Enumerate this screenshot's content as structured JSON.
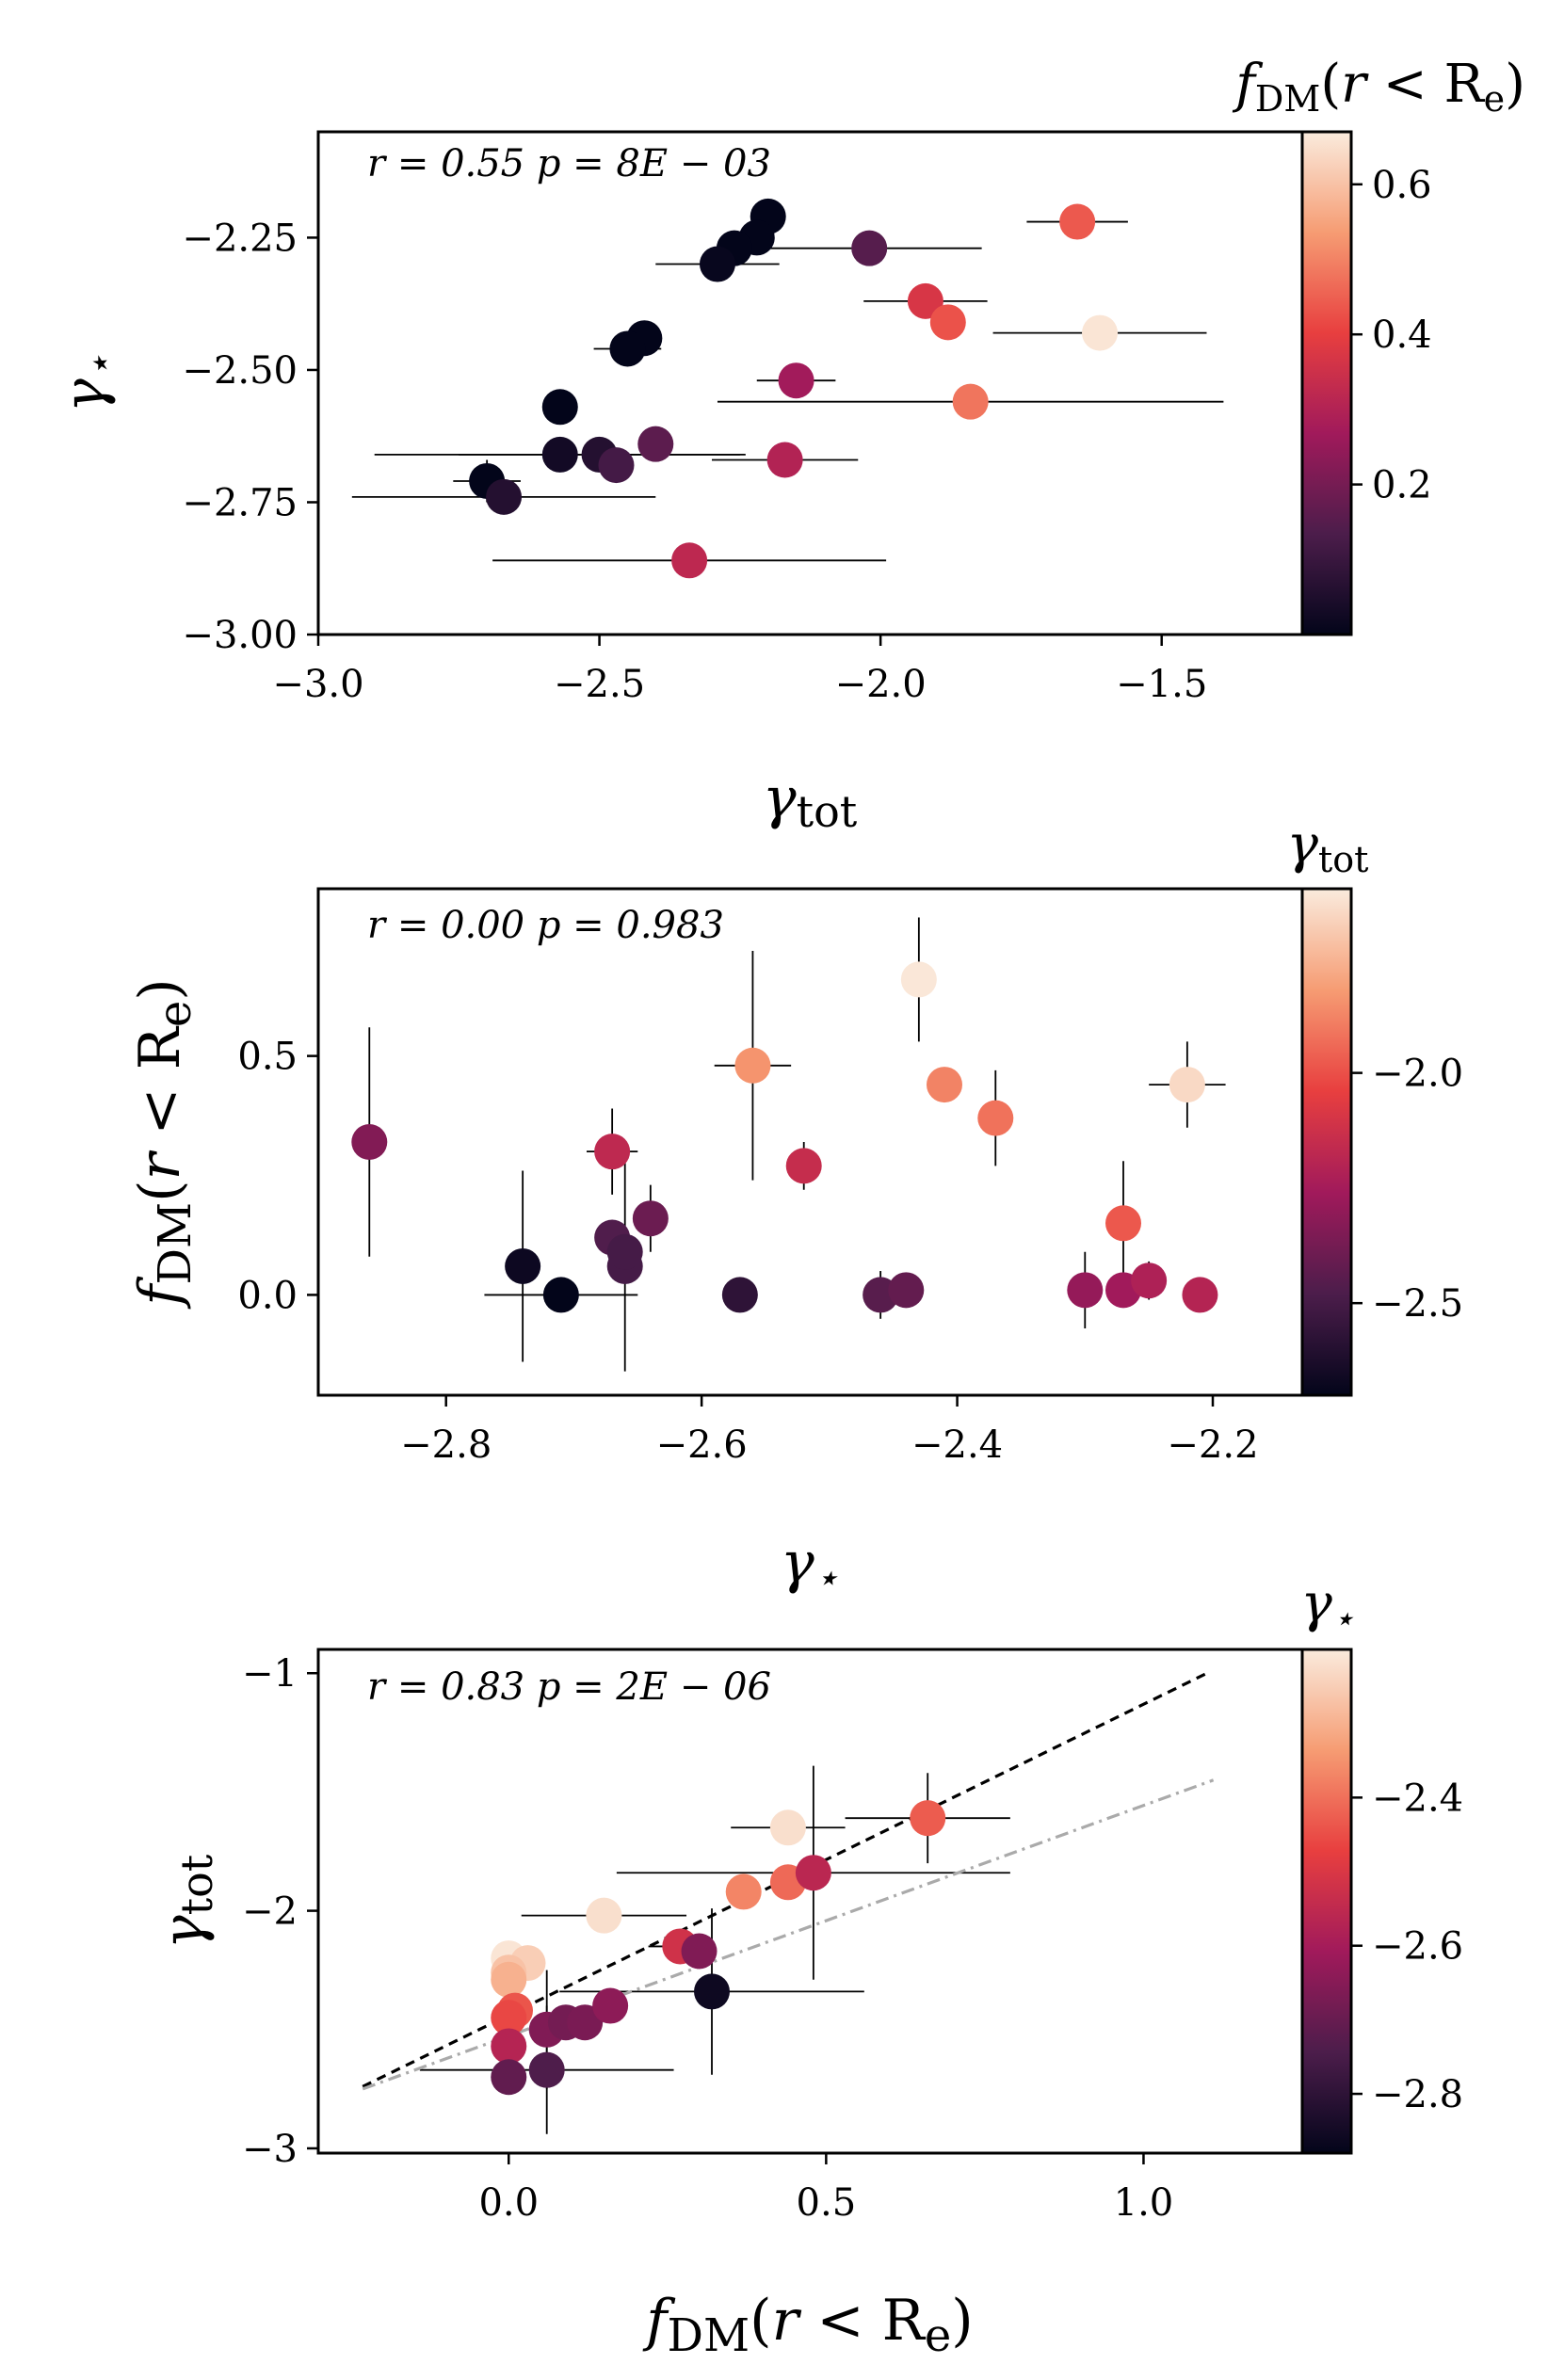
{
  "figure": {
    "panels": 3
  },
  "colormap": [
    "#03051a",
    "#4c1d4b",
    "#a11a5b",
    "#e83f3f",
    "#f69c73",
    "#faebdd"
  ],
  "chart_data": [
    {
      "type": "scatter",
      "id": "p1",
      "title": "",
      "xlabel": "γtot",
      "ylabel": "γ⋆",
      "xlim": [
        -3.0,
        -1.25
      ],
      "ylim": [
        -3.0,
        -2.05
      ],
      "xticks": [
        -3.0,
        -2.5,
        -2.0,
        -1.5
      ],
      "xtick_labels": [
        "−3.0",
        "−2.5",
        "−2.0",
        "−1.5"
      ],
      "yticks": [
        -3.0,
        -2.75,
        -2.5,
        -2.25
      ],
      "ytick_labels": [
        "−3.00",
        "−2.75",
        "−2.50",
        "−2.25"
      ],
      "annotation": "r = 0.55  p = 8E − 03",
      "colorbar": {
        "label": "fDM(r < Re)",
        "range": [
          0.0,
          0.67
        ],
        "ticks": [
          0.2,
          0.4,
          0.6
        ],
        "tick_labels": [
          "0.2",
          "0.4",
          "0.6"
        ]
      },
      "points": [
        {
          "x": -2.2,
          "y": -2.21,
          "c": 0.0,
          "xerr": 0.0,
          "yerr": 0.0
        },
        {
          "x": -2.22,
          "y": -2.25,
          "c": 0.0,
          "xerr": 0.0,
          "yerr": 0.0
        },
        {
          "x": -2.26,
          "y": -2.27,
          "c": 0.0,
          "xerr": 0.0,
          "yerr": 0.0
        },
        {
          "x": -2.29,
          "y": -2.3,
          "c": 0.01,
          "xerr": 0.11,
          "yerr": 0.0
        },
        {
          "x": -2.02,
          "y": -2.27,
          "c": 0.15,
          "xerr": 0.2,
          "yerr": 0.0
        },
        {
          "x": -1.65,
          "y": -2.22,
          "c": 0.44,
          "xerr": 0.09,
          "yerr": 0.0
        },
        {
          "x": -1.92,
          "y": -2.37,
          "c": 0.37,
          "xerr": 0.11,
          "yerr": 0.0
        },
        {
          "x": -1.88,
          "y": -2.41,
          "c": 0.43,
          "xerr": 0.0,
          "yerr": 0.0
        },
        {
          "x": -1.61,
          "y": -2.43,
          "c": 0.66,
          "xerr": 0.19,
          "yerr": 0.0
        },
        {
          "x": -2.42,
          "y": -2.44,
          "c": 0.0,
          "xerr": 0.0,
          "yerr": 0.0
        },
        {
          "x": -2.45,
          "y": -2.46,
          "c": 0.0,
          "xerr": 0.06,
          "yerr": 0.0
        },
        {
          "x": -2.15,
          "y": -2.52,
          "c": 0.27,
          "xerr": 0.07,
          "yerr": 0.0
        },
        {
          "x": -1.84,
          "y": -2.56,
          "c": 0.48,
          "xerr": 0.45,
          "yerr": 0.0
        },
        {
          "x": -2.57,
          "y": -2.57,
          "c": 0.0,
          "xerr": 0.0,
          "yerr": 0.0
        },
        {
          "x": -2.4,
          "y": -2.64,
          "c": 0.16,
          "xerr": 0.0,
          "yerr": 0.0
        },
        {
          "x": -2.57,
          "y": -2.66,
          "c": 0.03,
          "xerr": 0.33,
          "yerr": 0.0
        },
        {
          "x": -2.5,
          "y": -2.66,
          "c": 0.06,
          "xerr": 0.25,
          "yerr": 0.0
        },
        {
          "x": -2.47,
          "y": -2.68,
          "c": 0.12,
          "xerr": 0.0,
          "yerr": 0.0
        },
        {
          "x": -2.17,
          "y": -2.67,
          "c": 0.3,
          "xerr": 0.13,
          "yerr": 0.0
        },
        {
          "x": -2.7,
          "y": -2.71,
          "c": 0.0,
          "xerr": 0.06,
          "yerr": 0.04
        },
        {
          "x": -2.67,
          "y": -2.74,
          "c": 0.06,
          "xerr": 0.27,
          "yerr": 0.0
        },
        {
          "x": -2.34,
          "y": -2.86,
          "c": 0.32,
          "xerr": 0.35,
          "yerr": 0.0
        }
      ]
    },
    {
      "type": "scatter",
      "id": "p2",
      "title": "",
      "xlabel": "γ⋆",
      "ylabel": "fDM(r < Re)",
      "xlim": [
        -2.9,
        -2.13
      ],
      "ylim": [
        -0.21,
        0.85
      ],
      "xticks": [
        -2.8,
        -2.6,
        -2.4,
        -2.2
      ],
      "xtick_labels": [
        "−2.8",
        "−2.6",
        "−2.4",
        "−2.2"
      ],
      "yticks": [
        0.0,
        0.5
      ],
      "ytick_labels": [
        "0.0",
        "0.5"
      ],
      "annotation": "r = 0.00  p = 0.983",
      "colorbar": {
        "label": "γtot",
        "range": [
          -2.7,
          -1.6
        ],
        "ticks": [
          -2.5,
          -2.0
        ],
        "tick_labels": [
          "−2.5",
          "−2.0"
        ]
      },
      "points": [
        {
          "x": -2.86,
          "y": 0.32,
          "c": -2.34,
          "xerr": 0.0,
          "yerr": 0.24
        },
        {
          "x": -2.74,
          "y": 0.06,
          "c": -2.67,
          "xerr": 0.0,
          "yerr": 0.2
        },
        {
          "x": -2.71,
          "y": 0.0,
          "c": -2.7,
          "xerr": 0.06,
          "yerr": 0.0
        },
        {
          "x": -2.67,
          "y": 0.3,
          "c": -2.17,
          "xerr": 0.02,
          "yerr": 0.09
        },
        {
          "x": -2.67,
          "y": 0.12,
          "c": -2.47,
          "xerr": 0.0,
          "yerr": 0.0
        },
        {
          "x": -2.66,
          "y": 0.06,
          "c": -2.5,
          "xerr": 0.0,
          "yerr": 0.22
        },
        {
          "x": -2.66,
          "y": 0.09,
          "c": -2.5,
          "xerr": 0.0,
          "yerr": 0.0
        },
        {
          "x": -2.64,
          "y": 0.16,
          "c": -2.4,
          "xerr": 0.0,
          "yerr": 0.07
        },
        {
          "x": -2.57,
          "y": 0.0,
          "c": -2.57,
          "xerr": 0.0,
          "yerr": 0.0
        },
        {
          "x": -2.56,
          "y": 0.48,
          "c": -1.84,
          "xerr": 0.03,
          "yerr": 0.24
        },
        {
          "x": -2.52,
          "y": 0.27,
          "c": -2.15,
          "xerr": 0.0,
          "yerr": 0.05
        },
        {
          "x": -2.46,
          "y": 0.0,
          "c": -2.45,
          "xerr": 0.0,
          "yerr": 0.05
        },
        {
          "x": -2.44,
          "y": 0.01,
          "c": -2.42,
          "xerr": 0.0,
          "yerr": 0.0
        },
        {
          "x": -2.43,
          "y": 0.66,
          "c": -1.61,
          "xerr": 0.0,
          "yerr": 0.13
        },
        {
          "x": -2.41,
          "y": 0.44,
          "c": -1.88,
          "xerr": 0.0,
          "yerr": 0.0
        },
        {
          "x": -2.37,
          "y": 0.37,
          "c": -1.92,
          "xerr": 0.0,
          "yerr": 0.1
        },
        {
          "x": -2.3,
          "y": 0.01,
          "c": -2.29,
          "xerr": 0.0,
          "yerr": 0.08
        },
        {
          "x": -2.27,
          "y": 0.01,
          "c": -2.26,
          "xerr": 0.0,
          "yerr": 0.0
        },
        {
          "x": -2.27,
          "y": 0.15,
          "c": -1.98,
          "xerr": 0.0,
          "yerr": 0.13
        },
        {
          "x": -2.25,
          "y": 0.03,
          "c": -2.22,
          "xerr": 0.0,
          "yerr": 0.04
        },
        {
          "x": -2.22,
          "y": 0.44,
          "c": -1.65,
          "xerr": 0.03,
          "yerr": 0.09
        },
        {
          "x": -2.21,
          "y": 0.0,
          "c": -2.2,
          "xerr": 0.0,
          "yerr": 0.0
        }
      ]
    },
    {
      "type": "scatter",
      "id": "p3",
      "title": "",
      "xlabel": "fDM(r < Re)",
      "ylabel": "γtot",
      "xlim": [
        -0.3,
        1.25
      ],
      "ylim": [
        -3.02,
        -0.9
      ],
      "xticks": [
        0.0,
        0.5,
        1.0
      ],
      "xtick_labels": [
        "0.0",
        "0.5",
        "1.0"
      ],
      "yticks": [
        -3.0,
        -2.0,
        -1.0
      ],
      "ytick_labels": [
        "−3",
        "−2",
        "−1"
      ],
      "annotation": "r = 0.83  p = 2E − 06",
      "colorbar": {
        "label": "γ⋆",
        "range": [
          -2.88,
          -2.2
        ],
        "ticks": [
          -2.8,
          -2.6,
          -2.4
        ],
        "tick_labels": [
          "−2.8",
          "−2.6",
          "−2.4"
        ]
      },
      "lines": [
        {
          "name": "fit",
          "style": "dashed",
          "color": "#000000",
          "x": [
            -0.23,
            1.1
          ],
          "y": [
            -2.74,
            -1.0
          ]
        },
        {
          "name": "reference",
          "style": "dashdot",
          "color": "#aaaaaa",
          "x": [
            -0.23,
            1.11
          ],
          "y": [
            -2.75,
            -1.45
          ]
        }
      ],
      "points": [
        {
          "x": 0.0,
          "y": -2.2,
          "c": -2.21,
          "xerr": 0.0,
          "yerr": 0.0
        },
        {
          "x": 0.03,
          "y": -2.22,
          "c": -2.25,
          "xerr": 0.0,
          "yerr": 0.0
        },
        {
          "x": 0.0,
          "y": -2.26,
          "c": -2.27,
          "xerr": 0.0,
          "yerr": 0.0
        },
        {
          "x": 0.0,
          "y": -2.29,
          "c": -2.3,
          "xerr": 0.0,
          "yerr": 0.0
        },
        {
          "x": 0.01,
          "y": -2.42,
          "c": -2.44,
          "xerr": 0.0,
          "yerr": 0.0
        },
        {
          "x": 0.0,
          "y": -2.45,
          "c": -2.46,
          "xerr": 0.0,
          "yerr": 0.0
        },
        {
          "x": 0.0,
          "y": -2.57,
          "c": -2.57,
          "xerr": 0.0,
          "yerr": 0.0
        },
        {
          "x": 0.0,
          "y": -2.7,
          "c": -2.71,
          "xerr": 0.0,
          "yerr": 0.0
        },
        {
          "x": 0.06,
          "y": -2.67,
          "c": -2.74,
          "xerr": 0.2,
          "yerr": 0.27
        },
        {
          "x": 0.06,
          "y": -2.5,
          "c": -2.66,
          "xerr": 0.0,
          "yerr": 0.25
        },
        {
          "x": 0.09,
          "y": -2.47,
          "c": -2.68,
          "xerr": 0.0,
          "yerr": 0.0
        },
        {
          "x": 0.12,
          "y": -2.47,
          "c": -2.67,
          "xerr": 0.0,
          "yerr": 0.0
        },
        {
          "x": 0.16,
          "y": -2.4,
          "c": -2.64,
          "xerr": 0.0,
          "yerr": 0.0
        },
        {
          "x": 0.15,
          "y": -2.02,
          "c": -2.22,
          "xerr": 0.13,
          "yerr": 0.0
        },
        {
          "x": 0.27,
          "y": -2.15,
          "c": -2.52,
          "xerr": 0.05,
          "yerr": 0.0
        },
        {
          "x": 0.3,
          "y": -2.17,
          "c": -2.66,
          "xerr": 0.0,
          "yerr": 0.0
        },
        {
          "x": 0.32,
          "y": -2.34,
          "c": -2.86,
          "xerr": 0.24,
          "yerr": 0.35
        },
        {
          "x": 0.37,
          "y": -1.92,
          "c": -2.37,
          "xerr": 0.0,
          "yerr": 0.0
        },
        {
          "x": 0.44,
          "y": -1.88,
          "c": -2.41,
          "xerr": 0.0,
          "yerr": 0.0
        },
        {
          "x": 0.44,
          "y": -1.65,
          "c": -2.22,
          "xerr": 0.09,
          "yerr": 0.0
        },
        {
          "x": 0.48,
          "y": -1.84,
          "c": -2.56,
          "xerr": 0.31,
          "yerr": 0.45
        },
        {
          "x": 0.66,
          "y": -1.61,
          "c": -2.43,
          "xerr": 0.13,
          "yerr": 0.19
        }
      ]
    }
  ]
}
